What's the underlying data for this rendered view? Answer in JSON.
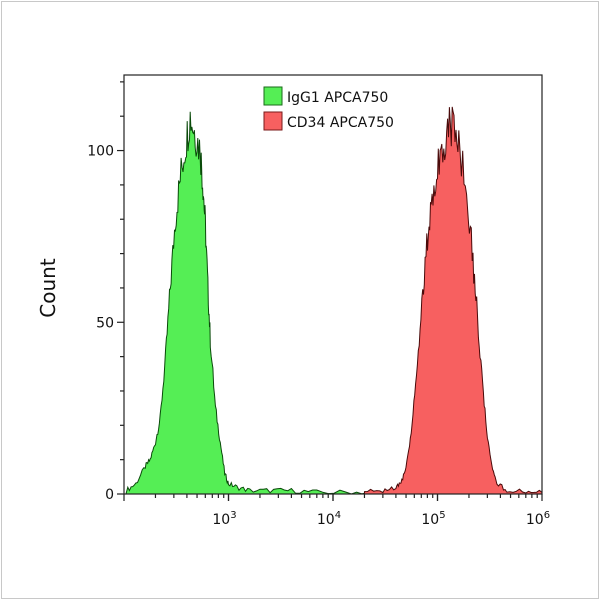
{
  "chart_data": {
    "type": "area",
    "title": "",
    "xlabel": "",
    "ylabel": "Count",
    "x_scale": "log",
    "xlim": [
      100,
      1000000
    ],
    "ylim": [
      0,
      122
    ],
    "x_ticks": [
      {
        "value": 1000,
        "base": "10",
        "exp": "3"
      },
      {
        "value": 10000,
        "base": "10",
        "exp": "4"
      },
      {
        "value": 100000,
        "base": "10",
        "exp": "5"
      },
      {
        "value": 1000000,
        "base": "10",
        "exp": "6"
      }
    ],
    "y_ticks": [
      {
        "value": 0,
        "label": "0"
      },
      {
        "value": 50,
        "label": "50"
      },
      {
        "value": 100,
        "label": "100"
      }
    ],
    "grid": false,
    "legend_position": "top-center",
    "series": [
      {
        "name": "IgG1 APCA750",
        "fill": "#55ee55",
        "stroke": "#0a4a0a",
        "x": [
          105,
          130,
          160,
          178,
          200,
          222,
          250,
          277,
          310,
          345,
          390,
          430,
          480,
          538,
          570,
          601,
          635,
          670,
          750,
          835,
          920,
          1000,
          1200,
          1600,
          2500,
          4000,
          7000,
          15000,
          30000
        ],
        "y": [
          1,
          3,
          8,
          10,
          15,
          22,
          40,
          60,
          80,
          92,
          102,
          110,
          105,
          100,
          90,
          78,
          60,
          45,
          25,
          15,
          6,
          3,
          2,
          1,
          1,
          1,
          0.5,
          0.5,
          0.5
        ]
      },
      {
        "name": "CD34 APCA750",
        "fill": "#f76060",
        "stroke": "#4a0a0a",
        "x": [
          20000,
          30000,
          40000,
          44700,
          50000,
          56000,
          63000,
          70800,
          79000,
          87000,
          98000,
          110000,
          125000,
          141000,
          160000,
          190000,
          215000,
          237000,
          265000,
          295000,
          330000,
          370000,
          460000,
          700000,
          1000000
        ],
        "y": [
          0.5,
          1,
          2,
          3,
          8,
          18,
          35,
          55,
          72,
          85,
          95,
          100,
          106,
          108,
          102,
          90,
          70,
          55,
          35,
          18,
          8,
          3,
          1,
          1,
          0.5
        ]
      }
    ]
  }
}
